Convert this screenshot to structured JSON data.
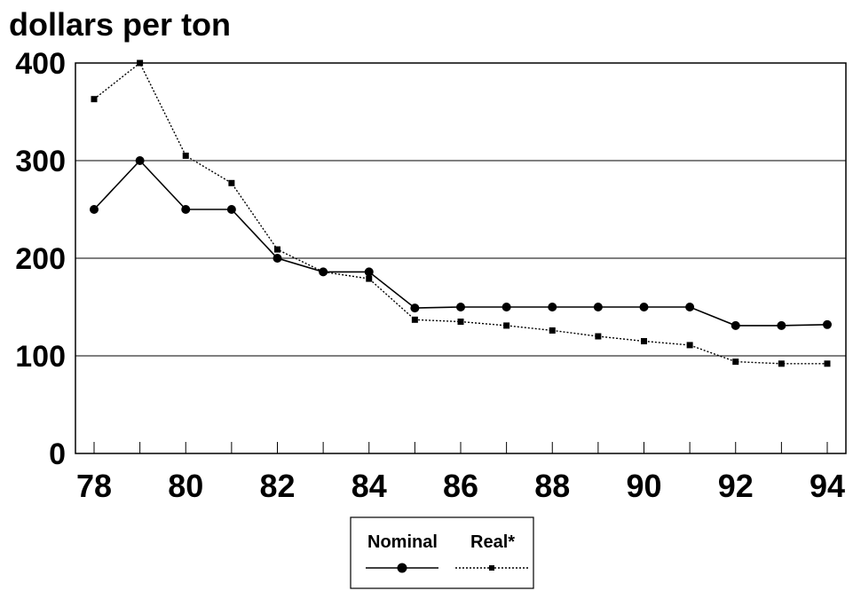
{
  "chart_data": {
    "type": "line",
    "ylabel": "dollars per ton",
    "xlabel": "",
    "x": [
      78,
      79,
      80,
      81,
      82,
      83,
      84,
      85,
      86,
      87,
      88,
      89,
      90,
      91,
      92,
      93,
      94
    ],
    "x_tick_labels": [
      "78",
      "80",
      "82",
      "84",
      "86",
      "88",
      "90",
      "92",
      "94"
    ],
    "y_tick_labels": [
      "0",
      "100",
      "200",
      "300",
      "400"
    ],
    "xlim": [
      78,
      94
    ],
    "ylim": [
      0,
      400
    ],
    "grid": "horizontal",
    "legend_position": "bottom-center",
    "series": [
      {
        "name": "Nominal",
        "style": "solid",
        "marker": "circle",
        "color": "#000000",
        "values": [
          250,
          300,
          250,
          250,
          200,
          186,
          186,
          149,
          150,
          150,
          150,
          150,
          150,
          150,
          131,
          131,
          132
        ]
      },
      {
        "name": "Real*",
        "style": "dotted",
        "marker": "square",
        "color": "#000000",
        "values": [
          363,
          400,
          305,
          277,
          209,
          186,
          179,
          137,
          135,
          131,
          126,
          120,
          115,
          111,
          94,
          92,
          92
        ]
      }
    ]
  }
}
